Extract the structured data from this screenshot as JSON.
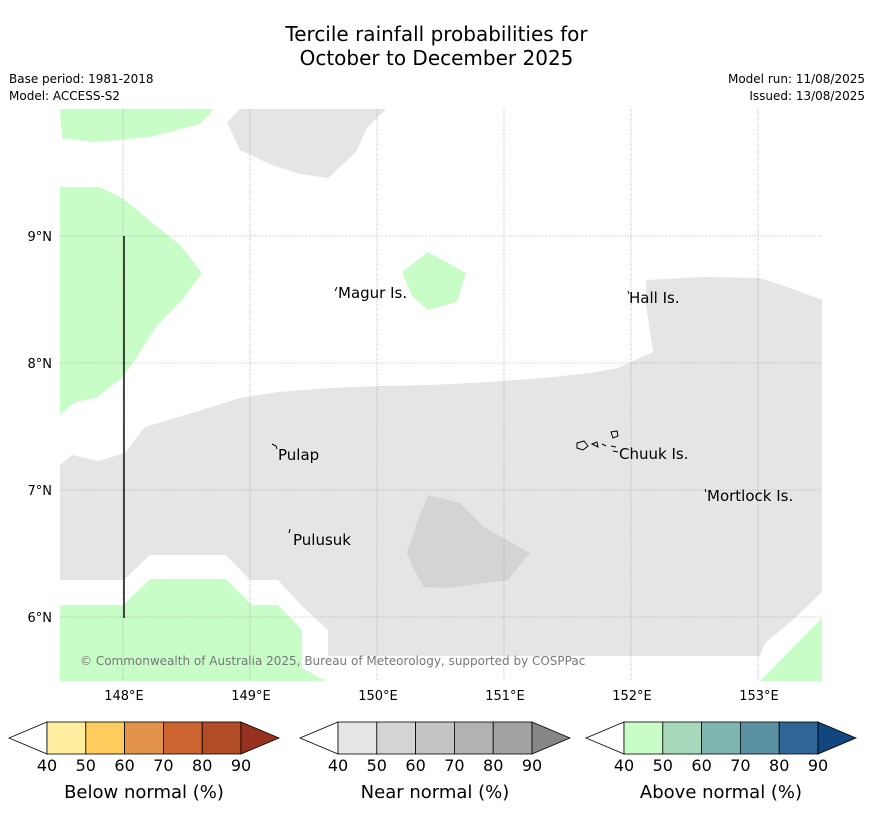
{
  "title_line1": "Tercile rainfall probabilities for",
  "title_line2": "October to December 2025",
  "meta_left": {
    "base_period": "Base period: 1981-2018",
    "model": "Model: ACCESS-S2"
  },
  "meta_right": {
    "model_run": "Model run: 11/08/2025",
    "issued": "Issued: 13/08/2025"
  },
  "map": {
    "lat_labels": [
      "9°N",
      "8°N",
      "7°N",
      "6°N"
    ],
    "lon_labels": [
      "148°E",
      "149°E",
      "150°E",
      "151°E",
      "152°E",
      "153°E"
    ],
    "places": [
      "Magur Is.",
      "Hall Is.",
      "Pulap",
      "Chuuk Is.",
      "Mortlock Is.",
      "Pulusuk"
    ],
    "copyright": "© Commonwealth of Australia 2025, Bureau of Meteorology, supported by COSPPac"
  },
  "colorbars": [
    {
      "label": "Below normal (%)",
      "ticks": [
        "40",
        "50",
        "60",
        "70",
        "80",
        "90"
      ],
      "colors": [
        "#ffffff",
        "#ffeda0",
        "#fecc5c",
        "#e3944a",
        "#cd6331",
        "#b24c27",
        "#96321f"
      ]
    },
    {
      "label": "Near normal (%)",
      "ticks": [
        "40",
        "50",
        "60",
        "70",
        "80",
        "90"
      ],
      "colors": [
        "#ffffff",
        "#e5e5e5",
        "#d4d4d4",
        "#c4c4c4",
        "#b2b2b2",
        "#a2a2a2",
        "#878787"
      ]
    },
    {
      "label": "Above normal (%)",
      "ticks": [
        "40",
        "50",
        "60",
        "70",
        "80",
        "90"
      ],
      "colors": [
        "#ffffff",
        "#c8fdc8",
        "#a6d9bb",
        "#7db5b0",
        "#5a91a3",
        "#306598",
        "#11467f"
      ]
    }
  ]
}
